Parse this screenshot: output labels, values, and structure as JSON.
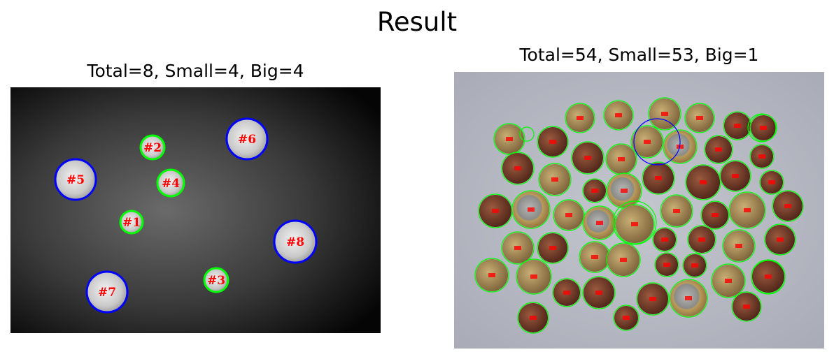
{
  "figure": {
    "title": "Result"
  },
  "colors": {
    "small_circle": "#00ff00",
    "big_circle": "#0000ff",
    "label": "#ff0000"
  },
  "left_panel": {
    "title": "Total=8, Small=4, Big=4",
    "coins": [
      {
        "label": "#1",
        "size": "small"
      },
      {
        "label": "#2",
        "size": "small"
      },
      {
        "label": "#3",
        "size": "small"
      },
      {
        "label": "#4",
        "size": "small"
      },
      {
        "label": "#5",
        "size": "big"
      },
      {
        "label": "#6",
        "size": "big"
      },
      {
        "label": "#7",
        "size": "big"
      },
      {
        "label": "#8",
        "size": "big"
      }
    ]
  },
  "right_panel": {
    "title": "Total=54, Small=53, Big=1"
  }
}
